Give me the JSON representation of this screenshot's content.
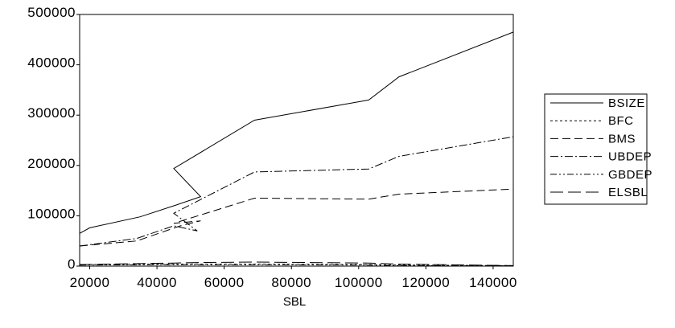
{
  "chart_data": {
    "type": "line",
    "xlabel": "SBL",
    "ylabel": "",
    "xlim": [
      17000,
      146000
    ],
    "ylim": [
      0,
      500000
    ],
    "x_ticks": [
      {
        "value": 20000,
        "label": "20000"
      },
      {
        "value": 40000,
        "label": "40000"
      },
      {
        "value": 60000,
        "label": "60000"
      },
      {
        "value": 80000,
        "label": "80000"
      },
      {
        "value": 100000,
        "label": "100000"
      },
      {
        "value": 120000,
        "label": "120000"
      },
      {
        "value": 140000,
        "label": "140000"
      }
    ],
    "y_ticks": [
      {
        "value": 0,
        "label": "0"
      },
      {
        "value": 100000,
        "label": "100000"
      },
      {
        "value": 200000,
        "label": "200000"
      },
      {
        "value": 300000,
        "label": "300000"
      },
      {
        "value": 400000,
        "label": "400000"
      },
      {
        "value": 500000,
        "label": "500000"
      }
    ],
    "grid": false,
    "legend_position": "right",
    "series": [
      {
        "name": "BSIZE",
        "dash": "",
        "x": [
          17000,
          20000,
          35000,
          46000,
          53000,
          45000,
          69000,
          103000,
          112000,
          146000
        ],
        "y": [
          65000,
          76000,
          98000,
          122000,
          138000,
          194000,
          290000,
          330000,
          376000,
          465000
        ]
      },
      {
        "name": "BFC",
        "dash": "3,3",
        "x": [
          17000,
          45000,
          53000,
          69000,
          103000,
          112000,
          146000
        ],
        "y": [
          3000,
          4000,
          4000,
          4000,
          3000,
          2000,
          1000
        ]
      },
      {
        "name": "BMS",
        "dash": "10,5",
        "x": [
          17000,
          34000,
          47000,
          53000,
          45000,
          69000,
          103000,
          112000,
          146000
        ],
        "y": [
          40000,
          50000,
          80000,
          90000,
          85000,
          135000,
          133000,
          143000,
          153000
        ]
      },
      {
        "name": "UBDEP",
        "dash": "10,3,2,3",
        "x": [
          17000,
          34000,
          45000,
          52000,
          45000,
          69000,
          103000,
          112000,
          146000
        ],
        "y": [
          40000,
          55000,
          80000,
          70000,
          105000,
          187000,
          193000,
          218000,
          257000
        ]
      },
      {
        "name": "GBDEP",
        "dash": "8,3,2,3,2,3",
        "x": [
          17000,
          45000,
          53000,
          69000,
          103000,
          112000,
          146000
        ],
        "y": [
          2000,
          3000,
          3000,
          3000,
          2000,
          1000,
          500
        ]
      },
      {
        "name": "ELSBL",
        "dash": "16,6",
        "x": [
          17000,
          45000,
          52000,
          69000,
          103000,
          112000,
          146000
        ],
        "y": [
          3000,
          6000,
          7000,
          8000,
          6000,
          4000,
          1000
        ]
      }
    ]
  }
}
